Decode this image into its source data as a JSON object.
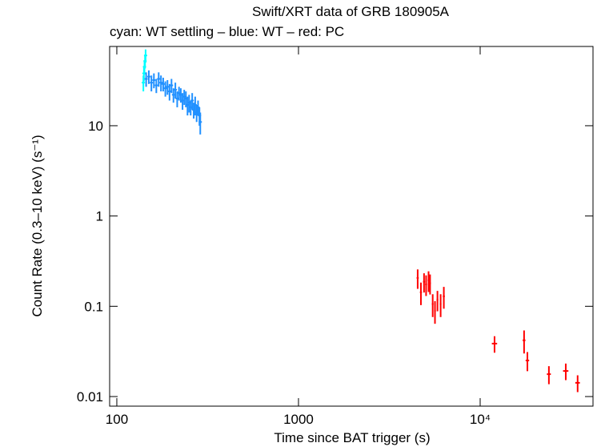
{
  "chart_data": {
    "type": "scatter",
    "title": "Swift/XRT data of GRB 180905A",
    "subtitle": "cyan: WT settling – blue: WT – red: PC",
    "xlabel": "Time since BAT trigger (s)",
    "ylabel": "Count Rate (0.3–10 keV) (s⁻¹)",
    "xscale": "log",
    "yscale": "log",
    "xlim": [
      91.3,
      41800
    ],
    "ylim": [
      0.00783,
      75.5
    ],
    "xticks": [
      100,
      1000,
      {
        "value": 10000,
        "label": "10⁴"
      }
    ],
    "yticks": [
      0.01,
      0.1,
      1,
      10
    ],
    "series": [
      {
        "name": "WT settling",
        "color": "#00ffff",
        "x": [
          140,
          141,
          142,
          143,
          144
        ],
        "values": [
          30,
          38,
          45,
          52,
          60
        ],
        "yerr": [
          6,
          7,
          8,
          9,
          10
        ]
      },
      {
        "name": "WT",
        "color": "#2090ff",
        "x": [
          145,
          150,
          155,
          160,
          165,
          170,
          175,
          180,
          185,
          190,
          195,
          200,
          205,
          210,
          215,
          220,
          225,
          230,
          235,
          240,
          245,
          250,
          255,
          260,
          265,
          270,
          275,
          280,
          285,
          288
        ],
        "values": [
          33,
          35,
          30,
          32,
          28,
          33,
          30,
          29,
          26,
          27,
          24,
          28,
          22,
          25,
          20,
          23,
          22,
          19,
          21,
          20,
          17,
          18,
          16,
          19,
          15,
          17,
          14,
          16,
          13,
          11
        ],
        "yerr": [
          6,
          6,
          6,
          6,
          5,
          6,
          6,
          5,
          5,
          5,
          5,
          5,
          4,
          5,
          4,
          4,
          4,
          4,
          4,
          4,
          4,
          4,
          3,
          4,
          3,
          4,
          3,
          3,
          3,
          3
        ]
      },
      {
        "name": "PC",
        "color": "#ff0000",
        "x": [
          4530,
          4720,
          4910,
          5040,
          5200,
          5300,
          5480,
          5640,
          5820,
          6060,
          6310,
          12000,
          17450,
          18200,
          23900,
          29600,
          34400
        ],
        "xerr": [
          60,
          60,
          60,
          60,
          60,
          60,
          60,
          60,
          60,
          60,
          80,
          400,
          300,
          400,
          600,
          1000,
          1000
        ],
        "values": [
          0.206,
          0.143,
          0.187,
          0.175,
          0.194,
          0.18,
          0.106,
          0.089,
          0.118,
          0.106,
          0.129,
          0.0386,
          0.042,
          0.0251,
          0.0177,
          0.0192,
          0.0142
        ],
        "yerr": [
          0.05,
          0.04,
          0.045,
          0.045,
          0.05,
          0.045,
          0.03,
          0.025,
          0.03,
          0.03,
          0.035,
          0.008,
          0.012,
          0.006,
          0.004,
          0.004,
          0.003
        ]
      }
    ]
  }
}
